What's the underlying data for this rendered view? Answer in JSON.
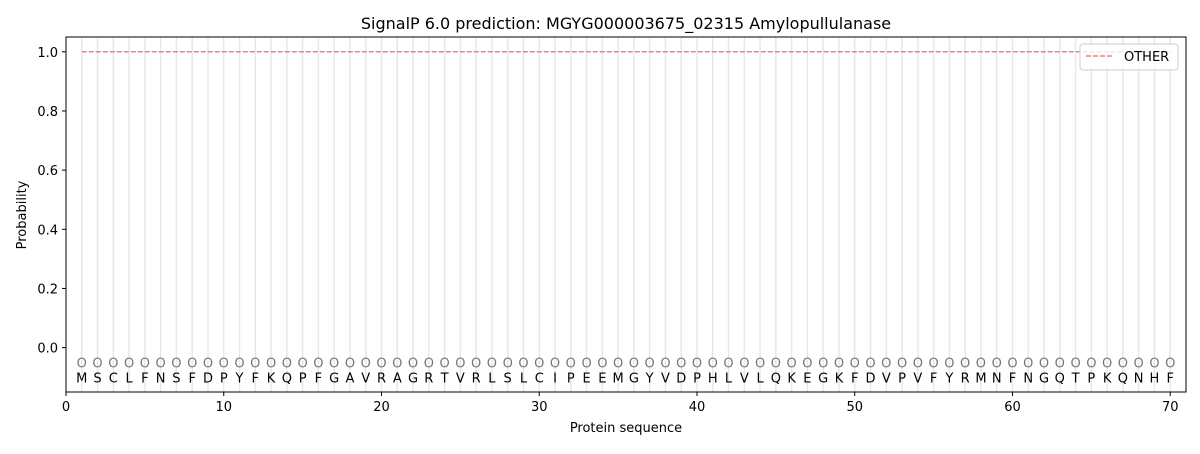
{
  "chart_data": {
    "type": "line",
    "title": "SignalP 6.0 prediction: MGYG000003675_02315 Amylopullulanase",
    "xlabel": "Protein sequence",
    "ylabel": "Probability",
    "xlim": [
      0,
      71
    ],
    "ylim": [
      -0.15,
      1.05
    ],
    "x_ticks": [
      0,
      10,
      20,
      30,
      40,
      50,
      60,
      70
    ],
    "y_ticks": [
      0.0,
      0.2,
      0.4,
      0.6,
      0.8,
      1.0
    ],
    "y_tick_labels": [
      "0.0",
      "0.2",
      "0.4",
      "0.6",
      "0.8",
      "1.0"
    ],
    "grid": "vertical lines at each residue",
    "legend_position": "top-right",
    "sequence": [
      "M",
      "S",
      "C",
      "L",
      "F",
      "N",
      "S",
      "F",
      "D",
      "P",
      "Y",
      "F",
      "K",
      "Q",
      "P",
      "F",
      "G",
      "A",
      "V",
      "R",
      "A",
      "G",
      "R",
      "T",
      "V",
      "R",
      "L",
      "S",
      "L",
      "C",
      "I",
      "P",
      "E",
      "E",
      "M",
      "G",
      "Y",
      "V",
      "D",
      "P",
      "H",
      "L",
      "V",
      "L",
      "Q",
      "K",
      "E",
      "G",
      "K",
      "F",
      "D",
      "V",
      "P",
      "V",
      "F",
      "Y",
      "R",
      "M",
      "N",
      "F",
      "N",
      "G",
      "Q",
      "T",
      "P",
      "K",
      "Q",
      "N",
      "H",
      "F"
    ],
    "per_residue_label": "O",
    "series": [
      {
        "name": "OTHER",
        "color": "#f08080",
        "style": "dashed",
        "x_range": [
          1,
          70
        ],
        "value": 1.0
      }
    ]
  }
}
